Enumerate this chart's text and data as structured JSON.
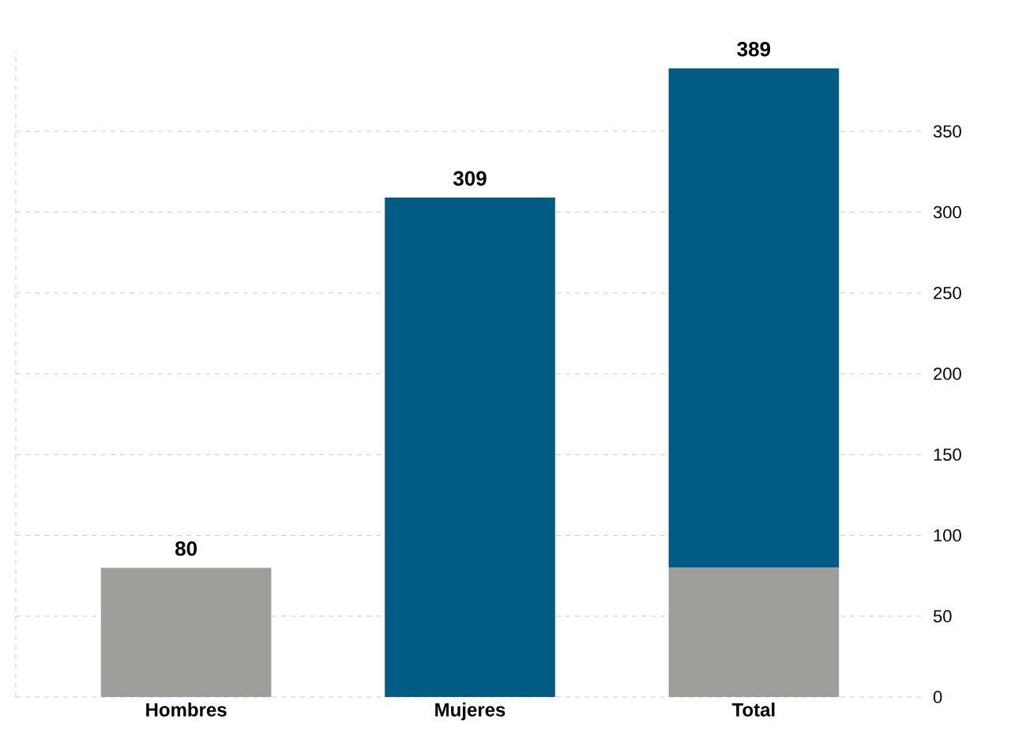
{
  "chart_data": {
    "type": "bar",
    "stacked": true,
    "categories": [
      "Hombres",
      "Mujeres",
      "Total"
    ],
    "series": [
      {
        "color": "#9e9e9b",
        "values": [
          80,
          0,
          80
        ]
      },
      {
        "color": "#005b85",
        "values": [
          0,
          309,
          309
        ]
      }
    ],
    "totals": [
      "80",
      "309",
      "389"
    ],
    "ylim": [
      0,
      400
    ],
    "yticks": [
      0,
      50,
      100,
      150,
      200,
      250,
      300,
      350
    ],
    "grid": "y"
  }
}
